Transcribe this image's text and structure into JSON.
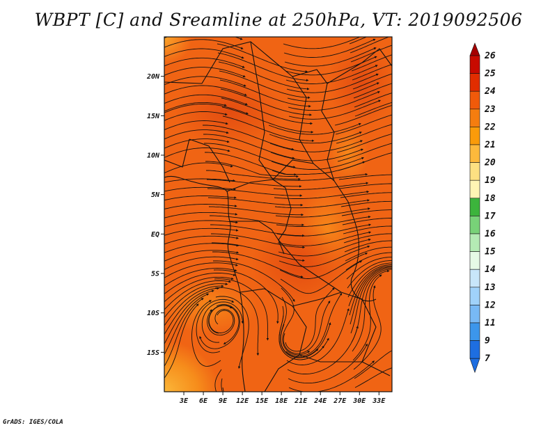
{
  "title": "WBPT [C] and Sreamline at 250hPa, VT: 2019092506",
  "credit": "GrADS: IGES/COLA",
  "map": {
    "lon_range": [
      0,
      35
    ],
    "lat_range": [
      -20,
      25
    ],
    "lon_ticks": [
      "3E",
      "6E",
      "9E",
      "12E",
      "15E",
      "18E",
      "21E",
      "24E",
      "27E",
      "30E",
      "33E"
    ],
    "lon_tick_values": [
      3,
      6,
      9,
      12,
      15,
      18,
      21,
      24,
      27,
      30,
      33
    ],
    "lat_ticks": [
      "20N",
      "15N",
      "10N",
      "5N",
      "EQ",
      "5S",
      "10S",
      "15S"
    ],
    "lat_tick_values": [
      20,
      15,
      10,
      5,
      0,
      -5,
      -10,
      -15
    ],
    "shading_base_color": "#f06414",
    "variable": "WBPT",
    "level": "250hPa",
    "valid_time": "2019092506"
  },
  "colorbar": {
    "labels": [
      "26",
      "25",
      "24",
      "23",
      "22",
      "21",
      "20",
      "19",
      "18",
      "17",
      "16",
      "15",
      "14",
      "13",
      "12",
      "11",
      "9",
      "7"
    ],
    "colors": [
      "#a50000",
      "#c80a00",
      "#e12d00",
      "#f05a0a",
      "#f57d0f",
      "#fa9b0a",
      "#fdb93c",
      "#fde082",
      "#fff5b4",
      "#3cb43c",
      "#78d278",
      "#b4ebb4",
      "#e6fae6",
      "#c8e6fa",
      "#a0d2fa",
      "#78b9f5",
      "#3c96eb",
      "#1e6ee1",
      "#1450c8"
    ],
    "top_arrow_color": "#a50000",
    "bottom_arrow_color": "#1e6ee1"
  }
}
